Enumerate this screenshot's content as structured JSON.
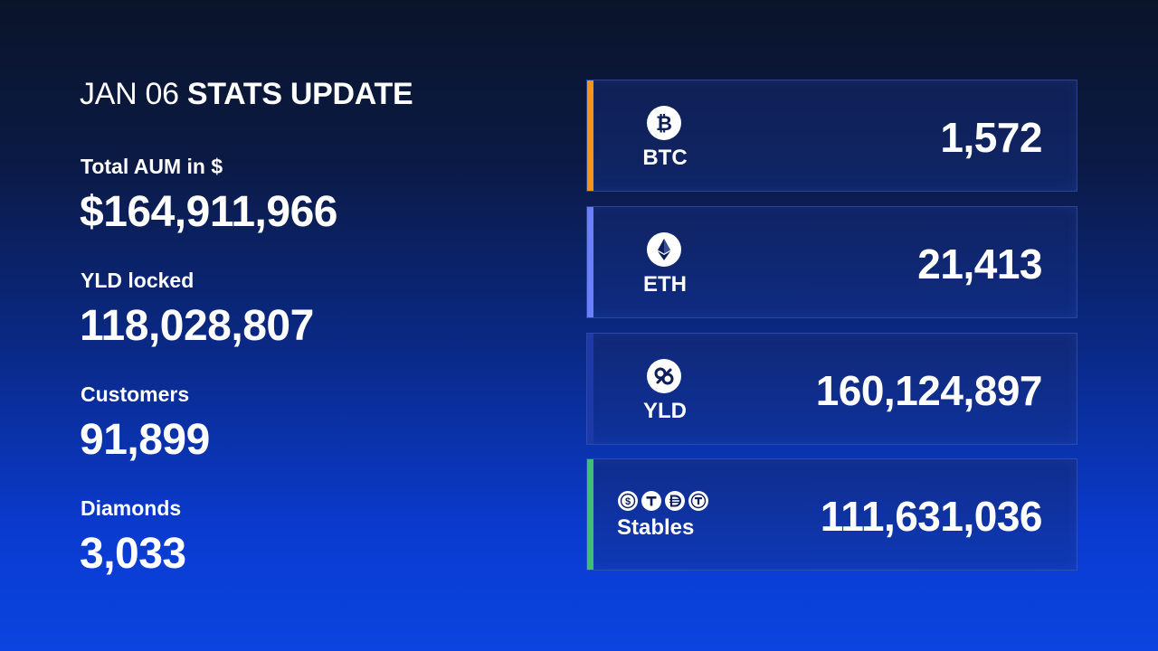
{
  "header": {
    "date": "JAN 06",
    "title": "STATS UPDATE"
  },
  "stats": [
    {
      "label": "Total AUM in $",
      "value": "$164,911,966"
    },
    {
      "label": "YLD locked",
      "value": "118,028,807"
    },
    {
      "label": "Customers",
      "value": "91,899"
    },
    {
      "label": "Diamonds",
      "value": "3,033"
    }
  ],
  "assets": [
    {
      "ticker": "BTC",
      "amount": "1,572",
      "icon": "bitcoin-icon",
      "accent": "#f7931a"
    },
    {
      "ticker": "ETH",
      "amount": "21,413",
      "icon": "ethereum-icon",
      "accent": "#6b7fff"
    },
    {
      "ticker": "YLD",
      "amount": "160,124,897",
      "icon": "yld-icon",
      "accent": "#1e3aa8"
    },
    {
      "ticker": "Stables",
      "amount": "111,631,036",
      "icon": "stables-icons",
      "accent": "#3fbf6f"
    }
  ]
}
